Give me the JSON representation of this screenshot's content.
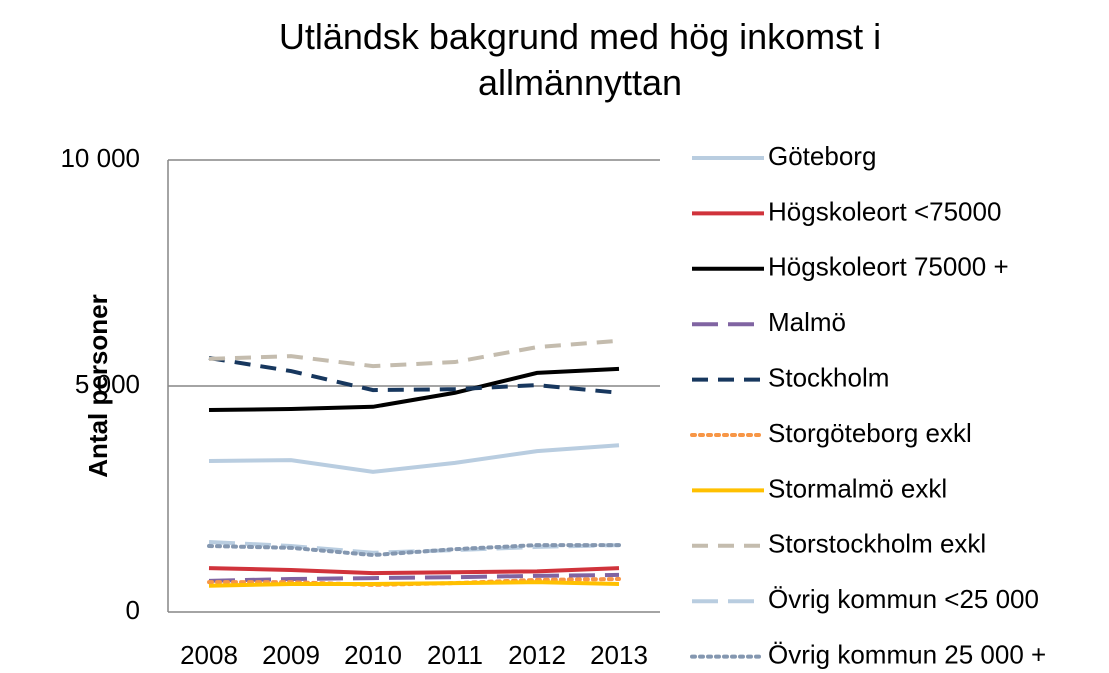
{
  "chart_data": {
    "type": "line",
    "title": "Utländsk bakgrund med hög inkomst i allmännyttan",
    "y_label": "Antal personer",
    "categories": [
      "2008",
      "2009",
      "2010",
      "2011",
      "2012",
      "2013"
    ],
    "ylim": [
      0,
      10000
    ],
    "yticks": [
      {
        "value": 0,
        "label": "0"
      },
      {
        "value": 5000,
        "label": "5 000"
      },
      {
        "value": 10000,
        "label": "10 000"
      }
    ],
    "grid": true,
    "legend": "right",
    "series": [
      {
        "name": "Göteborg",
        "color": "#b9cde0",
        "style": "solid",
        "values": [
          3340,
          3360,
          3100,
          3300,
          3560,
          3690
        ]
      },
      {
        "name": "Högskoleort <75000",
        "color": "#d0333b",
        "style": "solid",
        "values": [
          970,
          930,
          860,
          880,
          900,
          970
        ]
      },
      {
        "name": "Högskoleort 75000 +",
        "color": "#000000",
        "style": "solid",
        "values": [
          4470,
          4490,
          4540,
          4850,
          5290,
          5380
        ]
      },
      {
        "name": "Malmö",
        "color": "#8064a2",
        "style": "longdash",
        "values": [
          690,
          730,
          750,
          770,
          800,
          820
        ]
      },
      {
        "name": "Stockholm",
        "color": "#17375e",
        "style": "dashed",
        "values": [
          5620,
          5330,
          4910,
          4930,
          5020,
          4850
        ]
      },
      {
        "name": "Storgöteborg exkl",
        "color": "#f79646",
        "style": "dotted",
        "values": [
          660,
          660,
          600,
          640,
          710,
          730
        ]
      },
      {
        "name": "Stormalmö exkl",
        "color": "#ffc000",
        "style": "solid",
        "values": [
          580,
          620,
          620,
          640,
          660,
          620
        ]
      },
      {
        "name": "Storstockholm exkl",
        "color": "#c4bcae",
        "style": "dashed",
        "values": [
          5600,
          5660,
          5440,
          5530,
          5860,
          6000
        ]
      },
      {
        "name": "Övrig kommun <25 000",
        "color": "#b9cde0",
        "style": "longdash",
        "values": [
          1550,
          1460,
          1310,
          1370,
          1440,
          1480
        ]
      },
      {
        "name": "Övrig kommun 25 000 +",
        "color": "#8497b0",
        "style": "dotted",
        "values": [
          1460,
          1420,
          1260,
          1390,
          1480,
          1480
        ]
      }
    ]
  }
}
